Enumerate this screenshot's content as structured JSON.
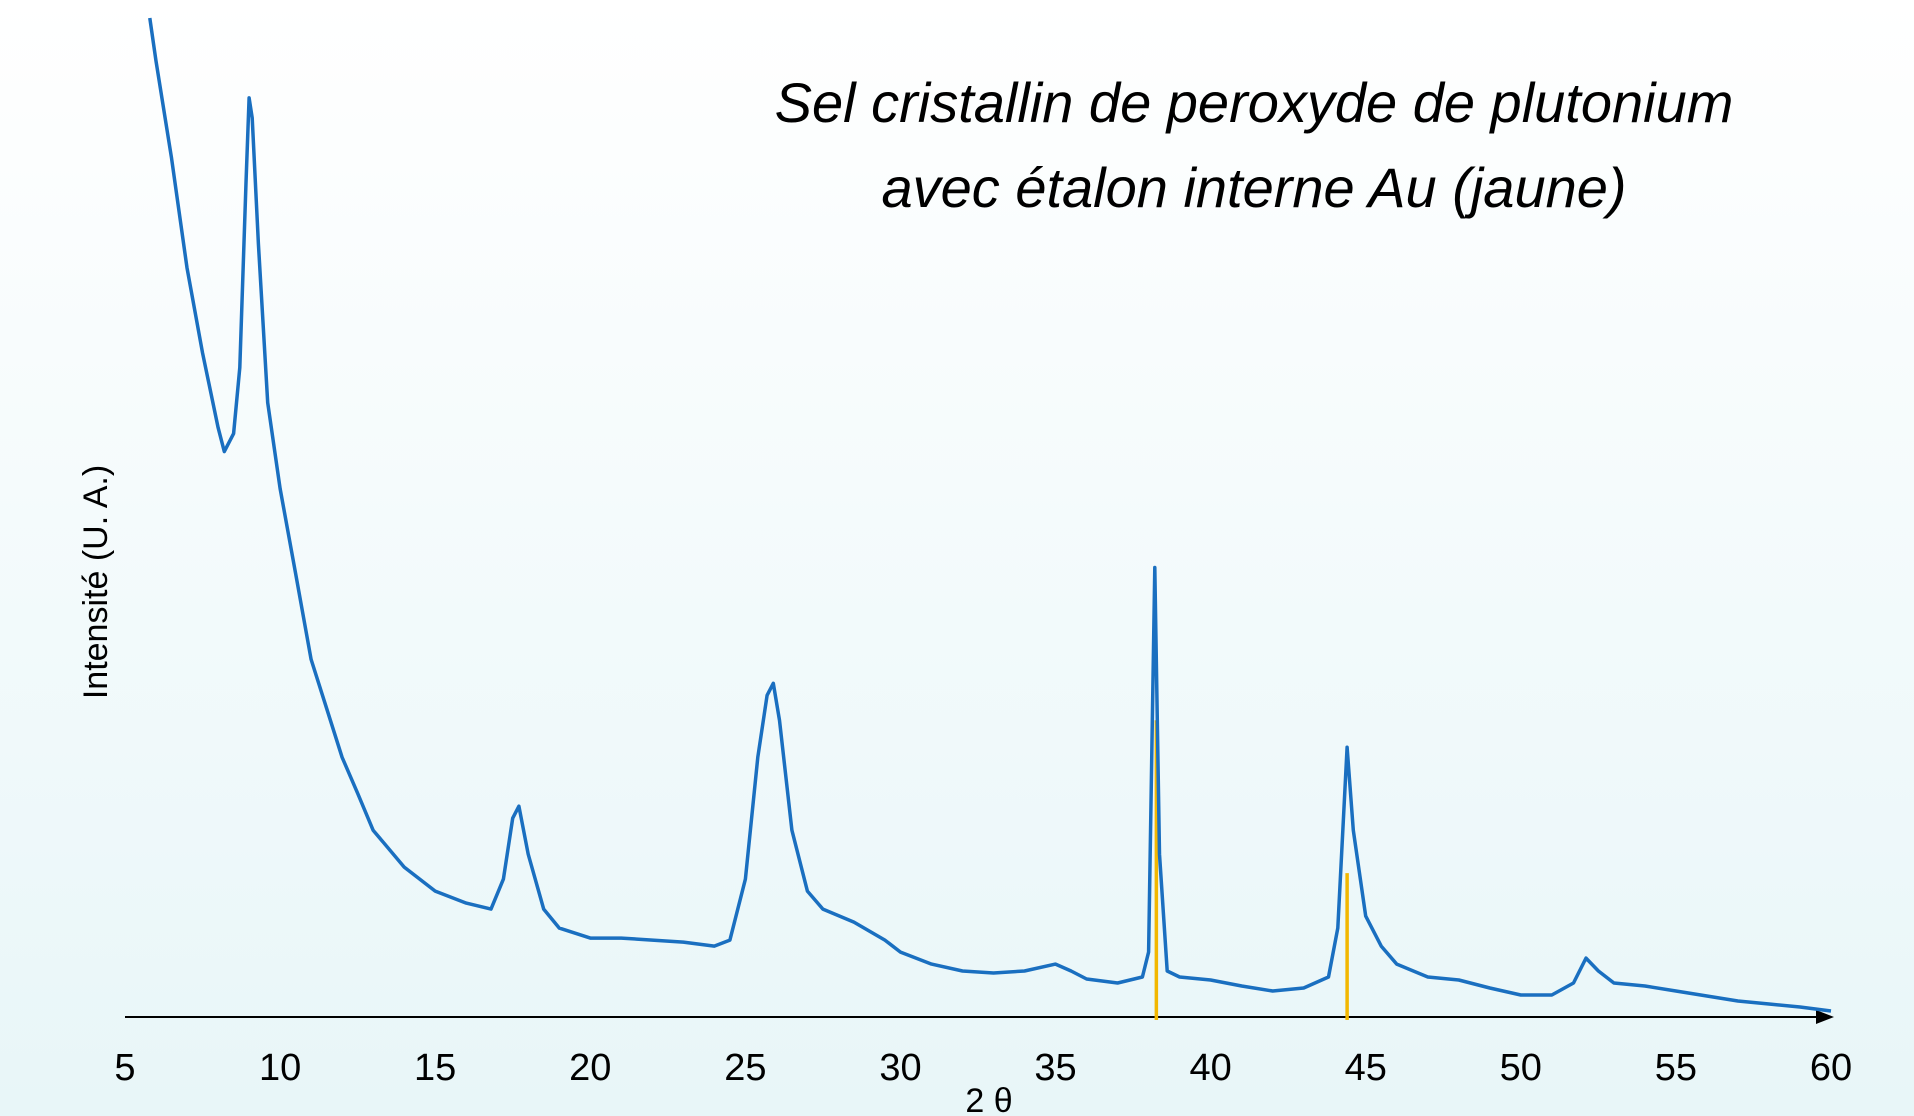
{
  "chart_data": {
    "type": "line",
    "title": [
      "Sel cristallin de peroxyde de plutonium",
      "avec étalon interne Au (jaune)"
    ],
    "x_label": "2 θ",
    "y_label": "Intensité (U. A.)",
    "xlim": [
      5,
      60
    ],
    "xticks": [
      5,
      10,
      15,
      20,
      25,
      30,
      35,
      40,
      45,
      50,
      55,
      60
    ],
    "ylim": [
      0,
      100
    ],
    "series": [
      {
        "color": "#1a6fc0",
        "x": [
          5.8,
          6.0,
          6.5,
          7.0,
          7.5,
          8.0,
          8.2,
          8.5,
          8.7,
          8.9,
          9.0,
          9.1,
          9.3,
          9.6,
          10.0,
          10.5,
          11.0,
          11.5,
          12.0,
          12.5,
          13.0,
          14.0,
          15.0,
          16.0,
          16.8,
          17.2,
          17.5,
          17.7,
          18.0,
          18.5,
          19.0,
          20,
          21,
          22,
          23,
          24,
          24.5,
          25.0,
          25.4,
          25.7,
          25.9,
          26.1,
          26.5,
          27.0,
          27.5,
          28.5,
          29.5,
          30.0,
          31,
          32,
          33,
          34,
          35,
          35.5,
          36,
          37,
          37.8,
          38.0,
          38.2,
          38.35,
          38.6,
          39.0,
          40,
          41,
          42,
          43,
          43.8,
          44.1,
          44.4,
          44.6,
          45.0,
          45.5,
          46.0,
          47,
          48,
          49,
          50,
          51,
          51.7,
          52.1,
          52.5,
          53,
          54,
          55,
          56,
          57,
          58,
          59,
          60
        ],
        "values": [
          100,
          95.7,
          86,
          75,
          66.5,
          59,
          56.6,
          58.4,
          65,
          83.5,
          92,
          90,
          77.4,
          61.5,
          52.9,
          44.4,
          35.8,
          30.9,
          26,
          22.4,
          18.7,
          15,
          12.6,
          11.4,
          10.8,
          13.8,
          19.9,
          21.1,
          16.3,
          10.8,
          8.9,
          7.9,
          7.9,
          7.7,
          7.5,
          7.1,
          7.7,
          13.8,
          26,
          32.2,
          33.4,
          29.7,
          18.7,
          12.6,
          10.8,
          9.5,
          7.7,
          6.5,
          5.3,
          4.6,
          4.4,
          4.6,
          5.3,
          4.6,
          3.8,
          3.4,
          4,
          6.5,
          45,
          16.3,
          4.6,
          4,
          3.7,
          3.1,
          2.6,
          2.9,
          4,
          8.9,
          27,
          18.7,
          10.1,
          7.1,
          5.3,
          4,
          3.7,
          2.9,
          2.2,
          2.2,
          3.4,
          5.9,
          4.6,
          3.4,
          3.1,
          2.6,
          2.1,
          1.6,
          1.3,
          1,
          0.6
        ]
      }
    ],
    "sticks": {
      "color": "#f2b700",
      "x": [
        38.25,
        44.4
      ],
      "values": [
        29.7,
        14.4
      ]
    }
  }
}
